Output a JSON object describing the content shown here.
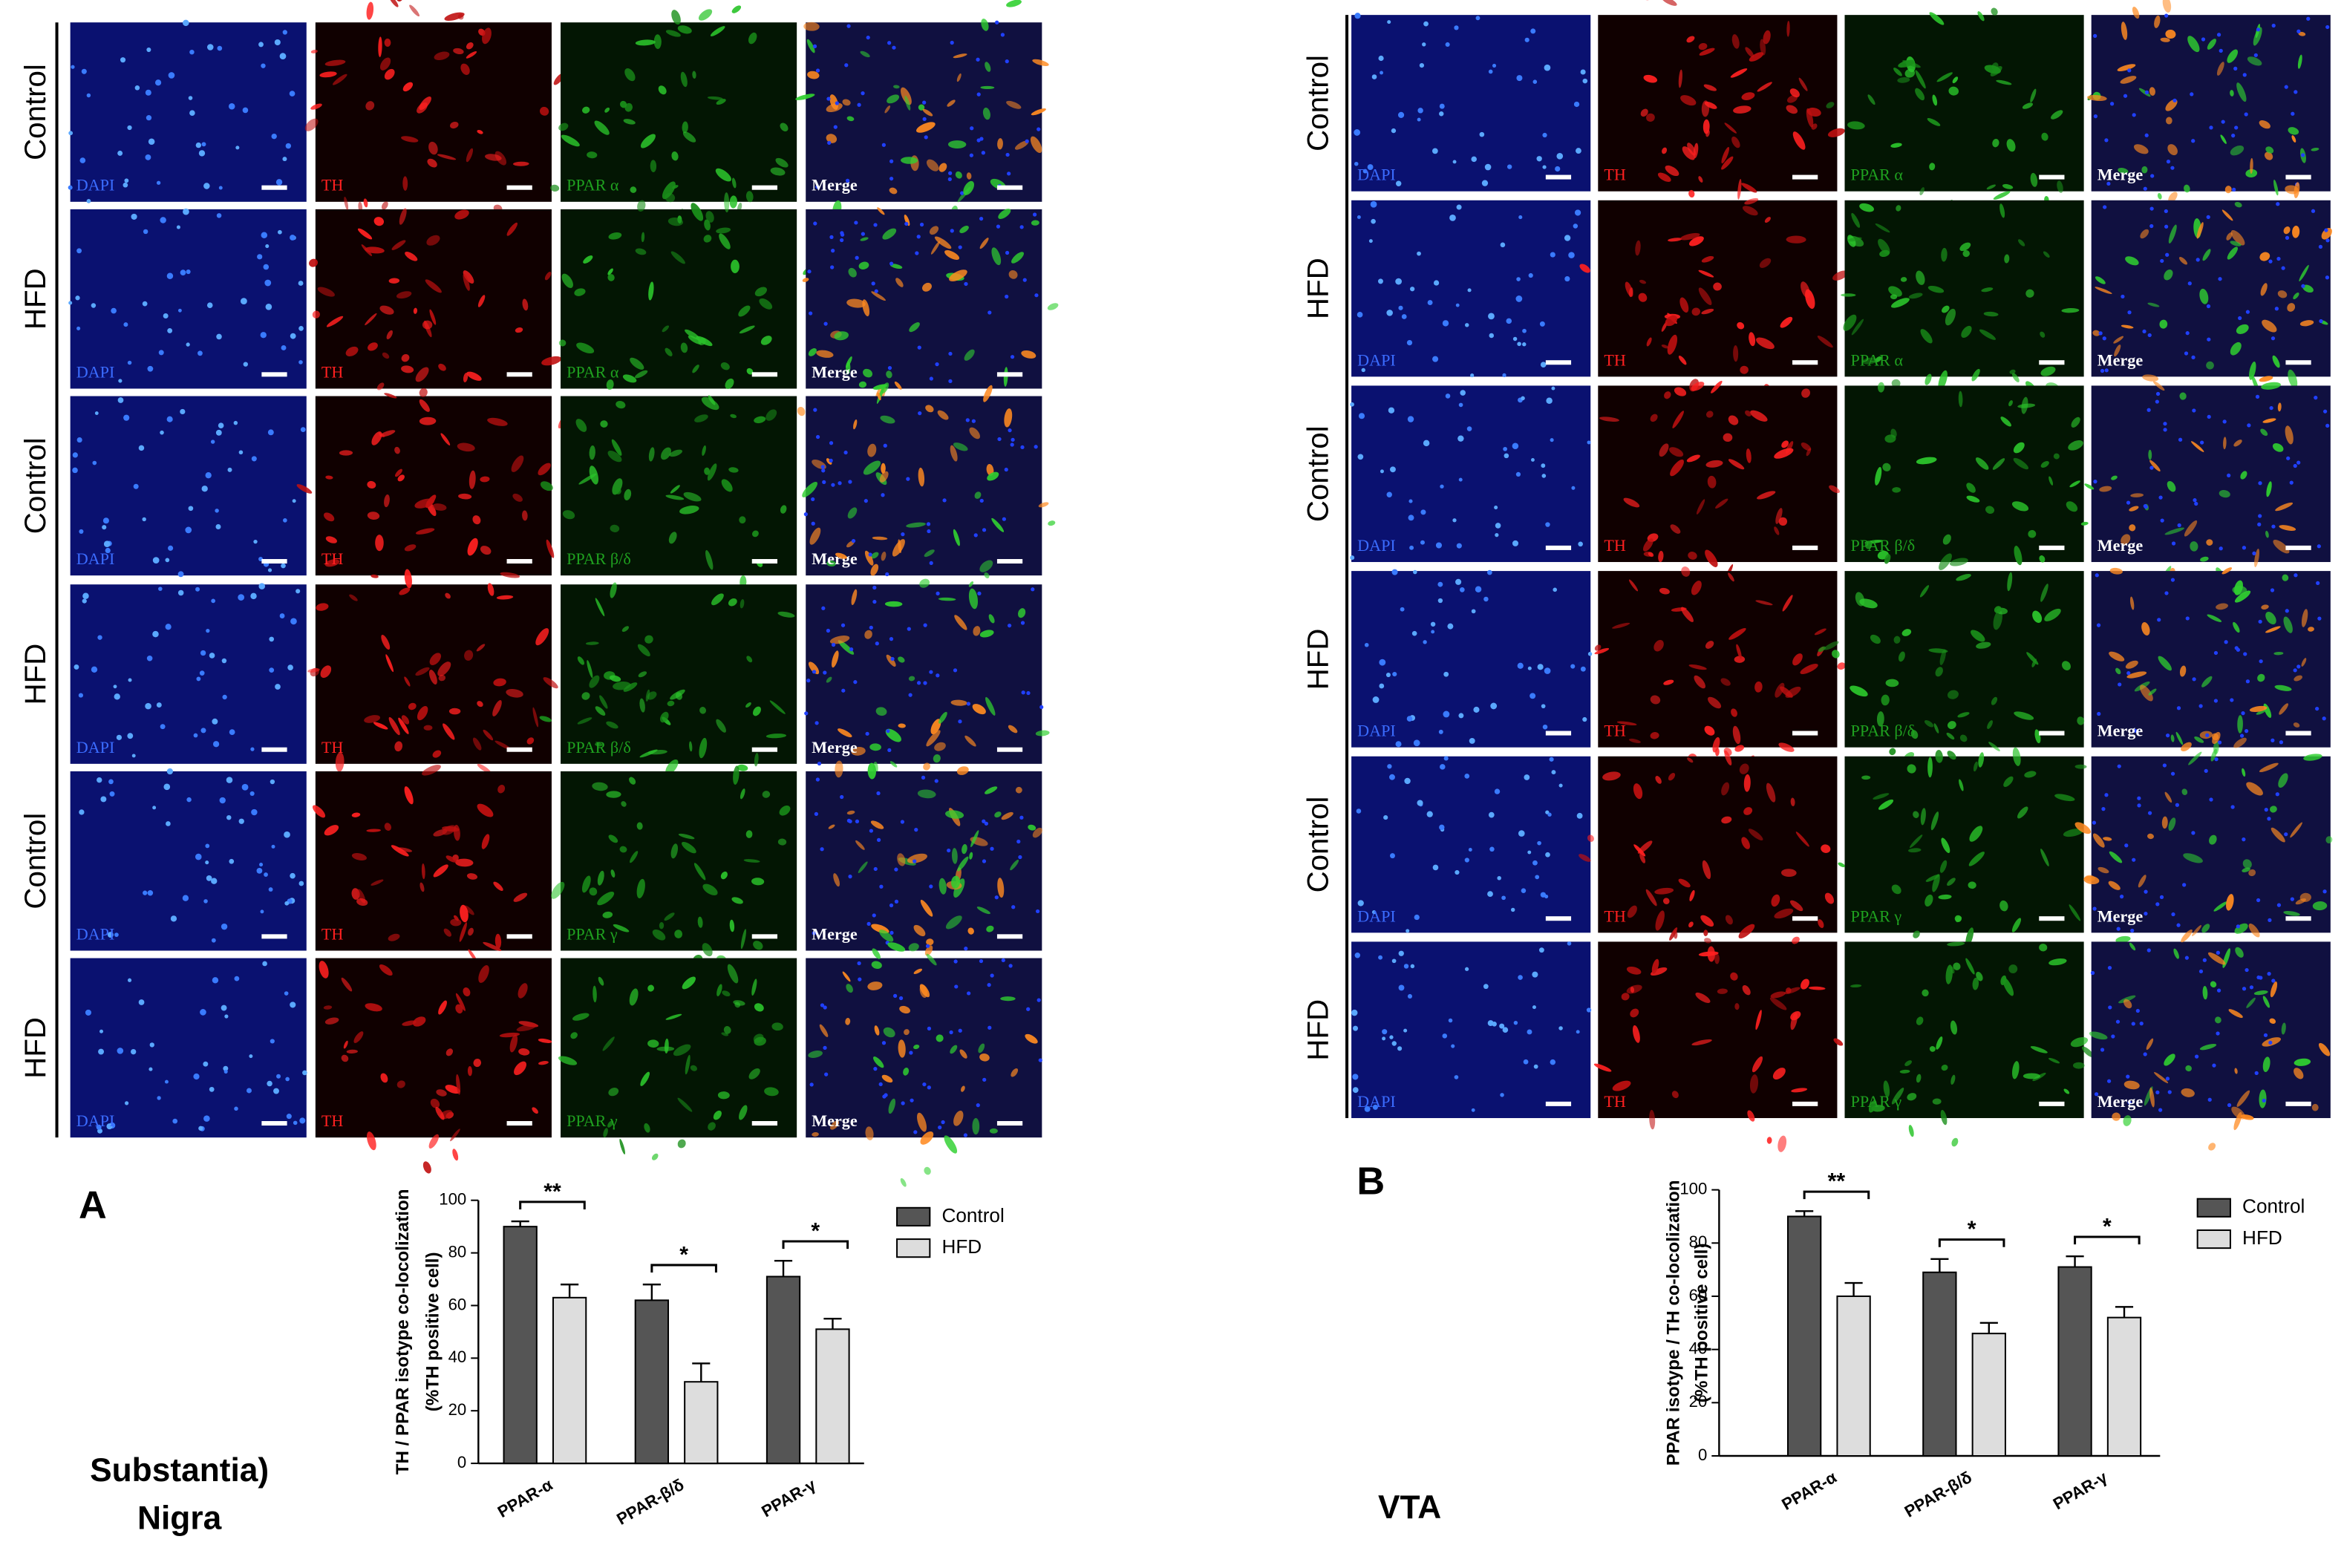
{
  "panels": [
    {
      "label": "A",
      "region_lines": [
        "Substantia)",
        "Nigra"
      ],
      "rows": [
        {
          "group": "Control",
          "channels": [
            "DAPI",
            "TH",
            "PPAR α",
            "Merge"
          ]
        },
        {
          "group": "HFD",
          "channels": [
            "DAPI",
            "TH",
            "PPAR α",
            "Merge"
          ]
        },
        {
          "group": "Control",
          "channels": [
            "DAPI",
            "TH",
            "PPAR β/δ",
            "Merge"
          ]
        },
        {
          "group": "HFD",
          "channels": [
            "DAPI",
            "TH",
            "PPAR β/δ",
            "Merge"
          ]
        },
        {
          "group": "Control",
          "channels": [
            "DAPI",
            "TH",
            "PPAR γ",
            "Merge"
          ]
        },
        {
          "group": "HFD",
          "channels": [
            "DAPI",
            "TH",
            "PPAR γ",
            "Merge"
          ]
        }
      ]
    },
    {
      "label": "B",
      "region_lines": [
        "VTA"
      ],
      "rows": [
        {
          "group": "Control",
          "channels": [
            "DAPI",
            "TH",
            "PPAR α",
            "Merge"
          ]
        },
        {
          "group": "HFD",
          "channels": [
            "DAPI",
            "TH",
            "PPAR α",
            "Merge"
          ]
        },
        {
          "group": "Control",
          "channels": [
            "DAPI",
            "TH",
            "PPAR β/δ",
            "Merge"
          ]
        },
        {
          "group": "HFD",
          "channels": [
            "DAPI",
            "TH",
            "PPAR β/δ",
            "Merge"
          ]
        },
        {
          "group": "Control",
          "channels": [
            "DAPI",
            "TH",
            "PPAR γ",
            "Merge"
          ]
        },
        {
          "group": "HFD",
          "channels": [
            "DAPI",
            "TH",
            "PPAR γ",
            "Merge"
          ]
        }
      ]
    }
  ],
  "chart_data": [
    {
      "type": "bar",
      "ylabel": [
        "TH / PPAR isotype co-locolization",
        "(%TH positive cell)"
      ],
      "categories": [
        "PPAR-α",
        "PPAR-β/δ",
        "PPAR-γ"
      ],
      "series": [
        {
          "name": "Control",
          "color": "#555555",
          "values": [
            90,
            62,
            71
          ],
          "errors": [
            2,
            6,
            6
          ]
        },
        {
          "name": "HFD",
          "color": "#dddddd",
          "values": [
            63,
            31,
            51
          ],
          "errors": [
            5,
            7,
            4
          ]
        }
      ],
      "annotations": [
        "**",
        "*",
        "*"
      ],
      "ylim": [
        0,
        100
      ],
      "yticks": [
        0,
        20,
        40,
        60,
        80,
        100
      ],
      "legend": "upper right"
    },
    {
      "type": "bar",
      "ylabel": [
        "PPAR isotype / TH co-locolization",
        "(%TH positive cell)"
      ],
      "categories": [
        "PPAR-α",
        "PPAR-β/δ",
        "PPAR-γ"
      ],
      "series": [
        {
          "name": "Control",
          "color": "#555555",
          "values": [
            90,
            69,
            71
          ],
          "errors": [
            2,
            5,
            4
          ]
        },
        {
          "name": "HFD",
          "color": "#dddddd",
          "values": [
            60,
            46,
            52
          ],
          "errors": [
            5,
            4,
            4
          ]
        }
      ],
      "annotations": [
        "**",
        "*",
        "*"
      ],
      "ylim": [
        0,
        100
      ],
      "yticks": [
        0,
        20,
        40,
        60,
        80,
        100
      ],
      "legend": "upper right"
    }
  ]
}
